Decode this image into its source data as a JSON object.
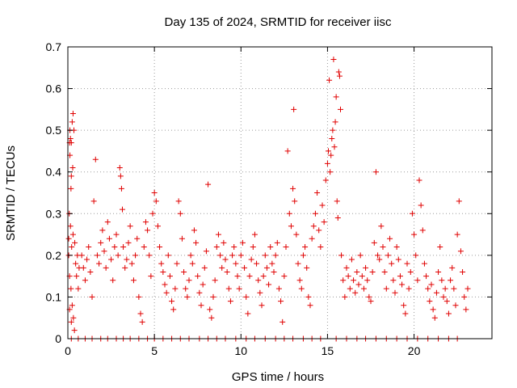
{
  "chart_data": {
    "type": "scatter",
    "title": "Day 135 of 2024, SRMTID for receiver iisc",
    "xlabel": "GPS time / hours",
    "ylabel": "SRMTID / TECUs",
    "xlim": [
      0,
      24.5
    ],
    "ylim": [
      0,
      0.7
    ],
    "xticks": [
      0,
      5,
      10,
      15,
      20
    ],
    "yticks": [
      0,
      0.1,
      0.2,
      0.3,
      0.4,
      0.5,
      0.6,
      0.7
    ],
    "grid": true,
    "marker": "+",
    "color": "#e00000",
    "series": [
      {
        "name": "SRMTID",
        "points": [
          [
            0.05,
            0.24
          ],
          [
            0.1,
            0.47
          ],
          [
            0.12,
            0.5
          ],
          [
            0.15,
            0.48
          ],
          [
            0.18,
            0.36
          ],
          [
            0.2,
            0.47
          ],
          [
            0.25,
            0.52
          ],
          [
            0.3,
            0.54
          ],
          [
            0.35,
            0.5
          ],
          [
            0.12,
            0.44
          ],
          [
            0.2,
            0.39
          ],
          [
            0.28,
            0.41
          ],
          [
            0.08,
            0.3
          ],
          [
            0.15,
            0.27
          ],
          [
            0.22,
            0.22
          ],
          [
            0.3,
            0.25
          ],
          [
            0.4,
            0.23
          ],
          [
            0.05,
            0.2
          ],
          [
            0.1,
            0.15
          ],
          [
            0.18,
            0.12
          ],
          [
            0.25,
            0.08
          ],
          [
            0.32,
            0.05
          ],
          [
            0.38,
            0.02
          ],
          [
            0.1,
            0.07
          ],
          [
            0.2,
            0.04
          ],
          [
            0.45,
            0.18
          ],
          [
            0.5,
            0.15
          ],
          [
            0.55,
            0.2
          ],
          [
            0.6,
            0.12
          ],
          [
            0.65,
            0.17
          ],
          [
            0.8,
            0.2
          ],
          [
            0.9,
            0.17
          ],
          [
            1.0,
            0.14
          ],
          [
            1.1,
            0.19
          ],
          [
            1.2,
            0.22
          ],
          [
            1.3,
            0.16
          ],
          [
            1.4,
            0.1
          ],
          [
            1.5,
            0.33
          ],
          [
            1.6,
            0.43
          ],
          [
            1.7,
            0.2
          ],
          [
            1.8,
            0.18
          ],
          [
            1.9,
            0.23
          ],
          [
            2.0,
            0.26
          ],
          [
            2.1,
            0.21
          ],
          [
            2.2,
            0.17
          ],
          [
            2.3,
            0.28
          ],
          [
            2.4,
            0.24
          ],
          [
            2.5,
            0.19
          ],
          [
            2.6,
            0.14
          ],
          [
            2.7,
            0.22
          ],
          [
            2.8,
            0.25
          ],
          [
            2.9,
            0.2
          ],
          [
            3.0,
            0.41
          ],
          [
            3.05,
            0.39
          ],
          [
            3.1,
            0.36
          ],
          [
            3.15,
            0.31
          ],
          [
            3.2,
            0.22
          ],
          [
            3.3,
            0.17
          ],
          [
            3.4,
            0.19
          ],
          [
            3.5,
            0.23
          ],
          [
            3.6,
            0.27
          ],
          [
            3.7,
            0.18
          ],
          [
            3.8,
            0.14
          ],
          [
            3.9,
            0.2
          ],
          [
            4.0,
            0.24
          ],
          [
            4.1,
            0.1
          ],
          [
            4.2,
            0.06
          ],
          [
            4.3,
            0.04
          ],
          [
            4.4,
            0.22
          ],
          [
            4.5,
            0.28
          ],
          [
            4.6,
            0.26
          ],
          [
            4.7,
            0.2
          ],
          [
            4.8,
            0.15
          ],
          [
            4.9,
            0.3
          ],
          [
            5.0,
            0.35
          ],
          [
            5.1,
            0.33
          ],
          [
            5.2,
            0.27
          ],
          [
            5.3,
            0.22
          ],
          [
            5.4,
            0.18
          ],
          [
            5.5,
            0.16
          ],
          [
            5.6,
            0.13
          ],
          [
            5.7,
            0.11
          ],
          [
            5.8,
            0.2
          ],
          [
            5.9,
            0.15
          ],
          [
            6.0,
            0.09
          ],
          [
            6.1,
            0.07
          ],
          [
            6.2,
            0.12
          ],
          [
            6.3,
            0.18
          ],
          [
            6.4,
            0.33
          ],
          [
            6.5,
            0.3
          ],
          [
            6.6,
            0.24
          ],
          [
            6.7,
            0.16
          ],
          [
            6.8,
            0.12
          ],
          [
            6.9,
            0.1
          ],
          [
            7.0,
            0.14
          ],
          [
            7.1,
            0.2
          ],
          [
            7.2,
            0.18
          ],
          [
            7.3,
            0.26
          ],
          [
            7.4,
            0.23
          ],
          [
            7.5,
            0.15
          ],
          [
            7.6,
            0.11
          ],
          [
            7.7,
            0.08
          ],
          [
            7.8,
            0.13
          ],
          [
            7.9,
            0.17
          ],
          [
            8.0,
            0.21
          ],
          [
            8.1,
            0.37
          ],
          [
            8.2,
            0.07
          ],
          [
            8.3,
            0.05
          ],
          [
            8.4,
            0.1
          ],
          [
            8.5,
            0.14
          ],
          [
            8.6,
            0.22
          ],
          [
            8.7,
            0.25
          ],
          [
            8.8,
            0.2
          ],
          [
            8.9,
            0.17
          ],
          [
            9.0,
            0.23
          ],
          [
            9.1,
            0.19
          ],
          [
            9.2,
            0.16
          ],
          [
            9.3,
            0.12
          ],
          [
            9.4,
            0.09
          ],
          [
            9.5,
            0.2
          ],
          [
            9.6,
            0.22
          ],
          [
            9.7,
            0.18
          ],
          [
            9.8,
            0.15
          ],
          [
            9.9,
            0.12
          ],
          [
            10.0,
            0.2
          ],
          [
            10.1,
            0.23
          ],
          [
            10.2,
            0.17
          ],
          [
            10.3,
            0.1
          ],
          [
            10.4,
            0.06
          ],
          [
            10.5,
            0.15
          ],
          [
            10.6,
            0.19
          ],
          [
            10.7,
            0.22
          ],
          [
            10.8,
            0.25
          ],
          [
            10.9,
            0.18
          ],
          [
            11.0,
            0.14
          ],
          [
            11.1,
            0.11
          ],
          [
            11.2,
            0.08
          ],
          [
            11.3,
            0.15
          ],
          [
            11.4,
            0.2
          ],
          [
            11.5,
            0.17
          ],
          [
            11.6,
            0.13
          ],
          [
            11.7,
            0.22
          ],
          [
            11.8,
            0.18
          ],
          [
            11.9,
            0.16
          ],
          [
            12.0,
            0.2
          ],
          [
            12.1,
            0.23
          ],
          [
            12.2,
            0.12
          ],
          [
            12.3,
            0.09
          ],
          [
            12.4,
            0.04
          ],
          [
            12.5,
            0.15
          ],
          [
            12.6,
            0.22
          ],
          [
            12.7,
            0.45
          ],
          [
            12.8,
            0.3
          ],
          [
            12.9,
            0.27
          ],
          [
            13.0,
            0.36
          ],
          [
            13.05,
            0.55
          ],
          [
            13.1,
            0.33
          ],
          [
            13.2,
            0.25
          ],
          [
            13.3,
            0.18
          ],
          [
            13.4,
            0.14
          ],
          [
            13.5,
            0.12
          ],
          [
            13.6,
            0.2
          ],
          [
            13.7,
            0.22
          ],
          [
            13.8,
            0.17
          ],
          [
            13.9,
            0.1
          ],
          [
            14.0,
            0.08
          ],
          [
            14.1,
            0.24
          ],
          [
            14.2,
            0.27
          ],
          [
            14.3,
            0.3
          ],
          [
            14.4,
            0.35
          ],
          [
            14.5,
            0.26
          ],
          [
            14.6,
            0.22
          ],
          [
            14.7,
            0.32
          ],
          [
            14.8,
            0.28
          ],
          [
            14.9,
            0.38
          ],
          [
            15.0,
            0.42
          ],
          [
            15.05,
            0.45
          ],
          [
            15.1,
            0.62
          ],
          [
            15.15,
            0.4
          ],
          [
            15.2,
            0.44
          ],
          [
            15.25,
            0.48
          ],
          [
            15.3,
            0.5
          ],
          [
            15.35,
            0.67
          ],
          [
            15.4,
            0.46
          ],
          [
            15.45,
            0.52
          ],
          [
            15.5,
            0.58
          ],
          [
            15.55,
            0.33
          ],
          [
            15.6,
            0.29
          ],
          [
            15.65,
            0.64
          ],
          [
            15.7,
            0.63
          ],
          [
            15.75,
            0.55
          ],
          [
            15.8,
            0.2
          ],
          [
            15.9,
            0.14
          ],
          [
            16.0,
            0.1
          ],
          [
            16.1,
            0.17
          ],
          [
            16.2,
            0.15
          ],
          [
            16.3,
            0.12
          ],
          [
            16.4,
            0.19
          ],
          [
            16.5,
            0.14
          ],
          [
            16.6,
            0.11
          ],
          [
            16.7,
            0.16
          ],
          [
            16.8,
            0.13
          ],
          [
            16.9,
            0.2
          ],
          [
            17.0,
            0.15
          ],
          [
            17.1,
            0.12
          ],
          [
            17.2,
            0.17
          ],
          [
            17.3,
            0.14
          ],
          [
            17.4,
            0.1
          ],
          [
            17.5,
            0.09
          ],
          [
            17.6,
            0.16
          ],
          [
            17.7,
            0.23
          ],
          [
            17.8,
            0.4
          ],
          [
            17.9,
            0.2
          ],
          [
            18.0,
            0.19
          ],
          [
            18.1,
            0.27
          ],
          [
            18.2,
            0.22
          ],
          [
            18.3,
            0.16
          ],
          [
            18.4,
            0.12
          ],
          [
            18.5,
            0.2
          ],
          [
            18.6,
            0.24
          ],
          [
            18.7,
            0.18
          ],
          [
            18.8,
            0.14
          ],
          [
            18.9,
            0.11
          ],
          [
            19.0,
            0.22
          ],
          [
            19.1,
            0.19
          ],
          [
            19.2,
            0.15
          ],
          [
            19.3,
            0.13
          ],
          [
            19.4,
            0.08
          ],
          [
            19.5,
            0.06
          ],
          [
            19.6,
            0.18
          ],
          [
            19.7,
            0.12
          ],
          [
            19.8,
            0.16
          ],
          [
            19.9,
            0.3
          ],
          [
            20.0,
            0.25
          ],
          [
            20.1,
            0.2
          ],
          [
            20.2,
            0.14
          ],
          [
            20.3,
            0.38
          ],
          [
            20.4,
            0.32
          ],
          [
            20.5,
            0.26
          ],
          [
            20.6,
            0.18
          ],
          [
            20.7,
            0.15
          ],
          [
            20.8,
            0.12
          ],
          [
            20.9,
            0.09
          ],
          [
            21.0,
            0.13
          ],
          [
            21.1,
            0.07
          ],
          [
            21.2,
            0.05
          ],
          [
            21.3,
            0.11
          ],
          [
            21.4,
            0.16
          ],
          [
            21.5,
            0.22
          ],
          [
            21.6,
            0.14
          ],
          [
            21.7,
            0.1
          ],
          [
            21.8,
            0.12
          ],
          [
            21.9,
            0.09
          ],
          [
            22.0,
            0.06
          ],
          [
            22.1,
            0.14
          ],
          [
            22.2,
            0.17
          ],
          [
            22.3,
            0.12
          ],
          [
            22.4,
            0.08
          ],
          [
            22.5,
            0.25
          ],
          [
            22.6,
            0.33
          ],
          [
            22.7,
            0.21
          ],
          [
            22.8,
            0.16
          ],
          [
            22.9,
            0.1
          ],
          [
            23.0,
            0.07
          ],
          [
            23.1,
            0.12
          ],
          [
            0.2,
            0
          ],
          [
            0.6,
            0
          ],
          [
            1.0,
            0
          ],
          [
            1.4,
            0
          ],
          [
            1.9,
            0
          ],
          [
            2.3,
            0
          ],
          [
            2.8,
            0
          ],
          [
            3.2,
            0
          ],
          [
            3.6,
            0
          ],
          [
            4.1,
            0
          ],
          [
            4.6,
            0
          ],
          [
            5.0,
            0
          ],
          [
            5.5,
            0
          ],
          [
            6.0,
            0
          ],
          [
            6.5,
            0
          ],
          [
            7.0,
            0
          ],
          [
            7.6,
            0
          ],
          [
            8.1,
            0
          ],
          [
            8.6,
            0
          ],
          [
            9.1,
            0
          ],
          [
            9.7,
            0
          ],
          [
            10.3,
            0
          ],
          [
            10.8,
            0
          ],
          [
            11.4,
            0
          ],
          [
            12.0,
            0
          ],
          [
            12.5,
            0
          ],
          [
            13.0,
            0
          ],
          [
            13.6,
            0
          ],
          [
            14.1,
            0
          ],
          [
            14.6,
            0
          ],
          [
            15.5,
            0
          ],
          [
            16.1,
            0
          ],
          [
            16.7,
            0
          ],
          [
            17.2,
            0
          ],
          [
            17.8,
            0
          ],
          [
            18.4,
            0
          ],
          [
            19.0,
            0
          ],
          [
            19.6,
            0
          ],
          [
            20.2,
            0
          ],
          [
            20.8,
            0
          ],
          [
            21.4,
            0
          ],
          [
            22.0,
            0
          ],
          [
            22.5,
            0
          ]
        ]
      }
    ]
  }
}
